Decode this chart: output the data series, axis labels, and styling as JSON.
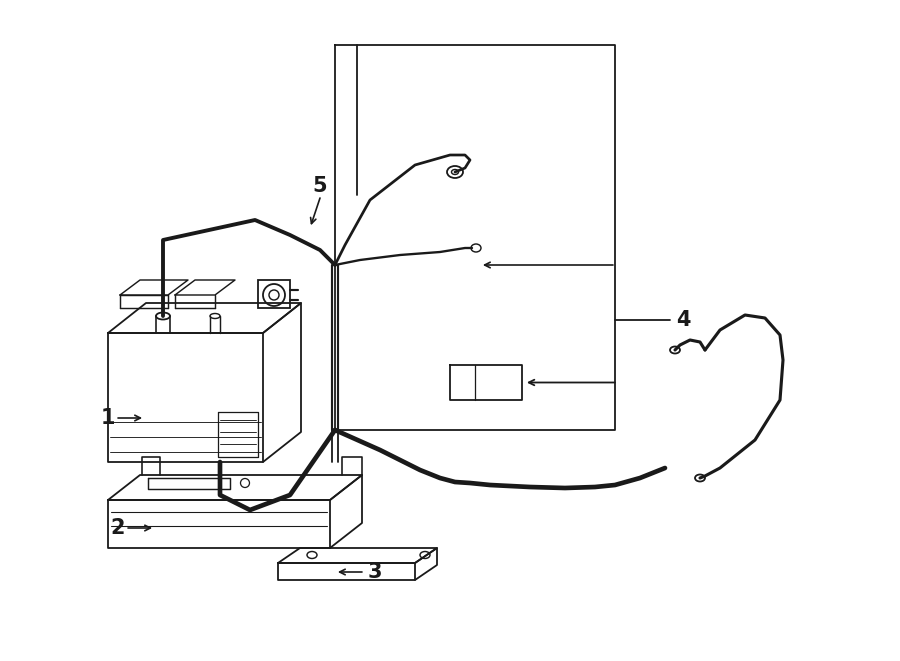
{
  "bg_color": "#ffffff",
  "lc": "#1a1a1a",
  "lw": 1.3,
  "fig_w": 9.0,
  "fig_h": 6.61,
  "dpi": 100
}
